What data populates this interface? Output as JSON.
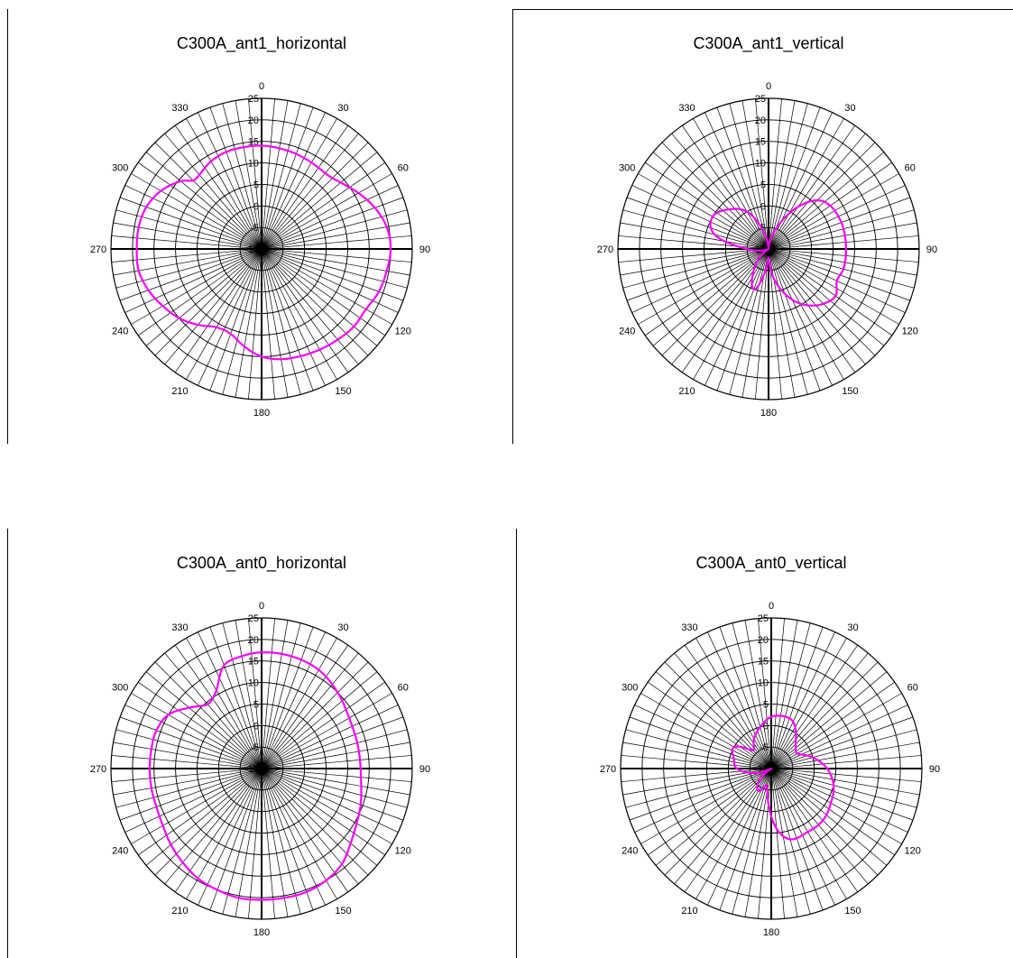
{
  "colors": {
    "trace": "#ff00ff",
    "grid": "#000000",
    "background": "#ffffff"
  },
  "chart_data": [
    {
      "type": "polar",
      "title": "C300A_ant1_horizontal",
      "angle_labels": [
        "0",
        "30",
        "60",
        "90",
        "120",
        "150",
        "180",
        "210",
        "240",
        "270",
        "300",
        "330"
      ],
      "radial_labels": [
        "25",
        "20",
        "15",
        "10",
        "5",
        "0",
        "-5",
        "-10"
      ],
      "rlim": [
        -10,
        25
      ],
      "angle_step": 5,
      "grid": true,
      "series": [
        {
          "theta": [
            0,
            20,
            40,
            50,
            60,
            70,
            80,
            90,
            100,
            110,
            120,
            130,
            140,
            150,
            160,
            170,
            180,
            190,
            200,
            210,
            220,
            230,
            240,
            250,
            260,
            270,
            280,
            290,
            300,
            310,
            315,
            320,
            330,
            340,
            350
          ],
          "r": [
            14,
            13.5,
            13,
            14,
            16,
            18,
            19.5,
            20,
            19.5,
            19,
            18,
            18,
            17.5,
            17,
            16.5,
            16,
            15,
            13,
            11,
            11,
            13,
            15,
            16.5,
            18,
            19,
            19,
            19,
            18.5,
            17,
            14.5,
            12.5,
            12.5,
            13.5,
            14,
            14
          ]
        }
      ]
    },
    {
      "type": "polar",
      "title": "C300A_ant1_vertical",
      "angle_labels": [
        "0",
        "30",
        "60",
        "90",
        "120",
        "150",
        "180",
        "210",
        "240",
        "270",
        "300",
        "330"
      ],
      "radial_labels": [
        "25",
        "20",
        "15",
        "10",
        "5",
        "0",
        "-5",
        "-10"
      ],
      "rlim": [
        -10,
        25
      ],
      "angle_step": 5,
      "grid": true,
      "series": [
        {
          "theta": [
            0,
            20,
            35,
            45,
            55,
            70,
            90,
            105,
            115,
            125,
            135,
            145,
            155,
            170,
            180,
            190,
            200,
            215,
            230,
            245,
            270,
            285,
            300,
            315,
            330,
            345
          ],
          "r": [
            -10,
            -5,
            2,
            6,
            7.5,
            8,
            8,
            8,
            7.5,
            9,
            8,
            6,
            3,
            -3,
            -8,
            -4,
            0,
            -4,
            -8,
            -10,
            -5,
            3,
            5,
            3,
            0,
            -6
          ]
        }
      ]
    },
    {
      "type": "polar",
      "title": "C300A_ant0_horizontal",
      "angle_labels": [
        "0",
        "30",
        "60",
        "90",
        "120",
        "150",
        "180",
        "210",
        "240",
        "270",
        "300",
        "330"
      ],
      "radial_labels": [
        "25",
        "20",
        "15",
        "10",
        "5",
        "0",
        "-5",
        "-10"
      ],
      "rlim": [
        -10,
        25
      ],
      "angle_step": 5,
      "grid": true,
      "series": [
        {
          "theta": [
            0,
            15,
            30,
            45,
            60,
            75,
            90,
            100,
            110,
            120,
            130,
            140,
            150,
            160,
            170,
            180,
            190,
            200,
            210,
            220,
            230,
            240,
            250,
            260,
            270,
            280,
            290,
            300,
            310,
            320,
            330,
            340,
            350
          ],
          "r": [
            17,
            17,
            16.5,
            15,
            13.5,
            13,
            13,
            13.5,
            14.5,
            15.5,
            17,
            19,
            20,
            20.5,
            20.5,
            20.5,
            20.5,
            20,
            19.5,
            18.5,
            17.5,
            16.5,
            16,
            16,
            16,
            16,
            16,
            15,
            12,
            9.5,
            11,
            15.5,
            16.5
          ]
        }
      ]
    },
    {
      "type": "polar",
      "title": "C300A_ant0_vertical",
      "angle_labels": [
        "0",
        "30",
        "60",
        "90",
        "120",
        "150",
        "180",
        "210",
        "240",
        "270",
        "300",
        "330"
      ],
      "radial_labels": [
        "25",
        "20",
        "15",
        "10",
        "5",
        "0",
        "-5",
        "-10"
      ],
      "rlim": [
        -10,
        25
      ],
      "angle_step": 5,
      "grid": true,
      "series": [
        {
          "theta": [
            0,
            15,
            25,
            35,
            45,
            60,
            75,
            90,
            105,
            120,
            135,
            150,
            165,
            175,
            185,
            195,
            210,
            225,
            240,
            255,
            270,
            285,
            300,
            315,
            330,
            345
          ],
          "r": [
            2,
            2.5,
            2,
            0,
            -2,
            -3,
            0,
            3,
            5,
            6,
            7,
            7,
            7,
            4,
            -2,
            -6,
            -4,
            -6,
            -10,
            -6,
            -2,
            -1,
            0,
            -4,
            -2,
            0
          ]
        }
      ]
    }
  ]
}
